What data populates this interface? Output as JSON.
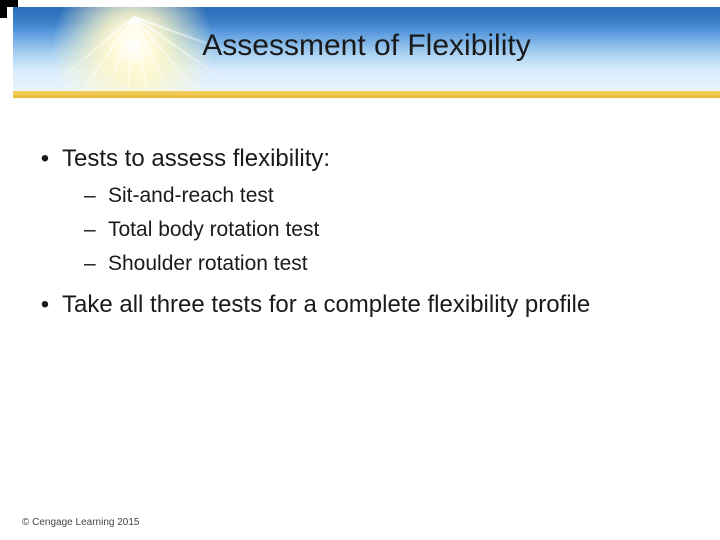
{
  "styling": {
    "slide_width": 720,
    "slide_height": 540,
    "header_gradient": [
      "#2a6db8",
      "#3b7fc9",
      "#5f9fe0",
      "#a8d0f0",
      "#d8ebfb",
      "#eaf4fd"
    ],
    "gold_bar_gradient": [
      "#f6d264",
      "#e7b93a"
    ],
    "title_fontsize": 30,
    "title_color": "#1a1a1a",
    "body_color": "#1a1a1a",
    "lvl1_fontsize": 24,
    "lvl2_fontsize": 21,
    "footer_fontsize": 10,
    "footer_color": "#444444",
    "background_color": "#ffffff",
    "corner_color": "#000000"
  },
  "title": "Assessment of Flexibility",
  "bullets": [
    {
      "text": "Tests to assess flexibility:",
      "children": [
        "Sit-and-reach test",
        "Total body rotation test",
        "Shoulder rotation test"
      ]
    },
    {
      "text": "Take all three tests for a complete flexibility profile",
      "children": []
    }
  ],
  "footer": "© Cengage Learning 2015"
}
